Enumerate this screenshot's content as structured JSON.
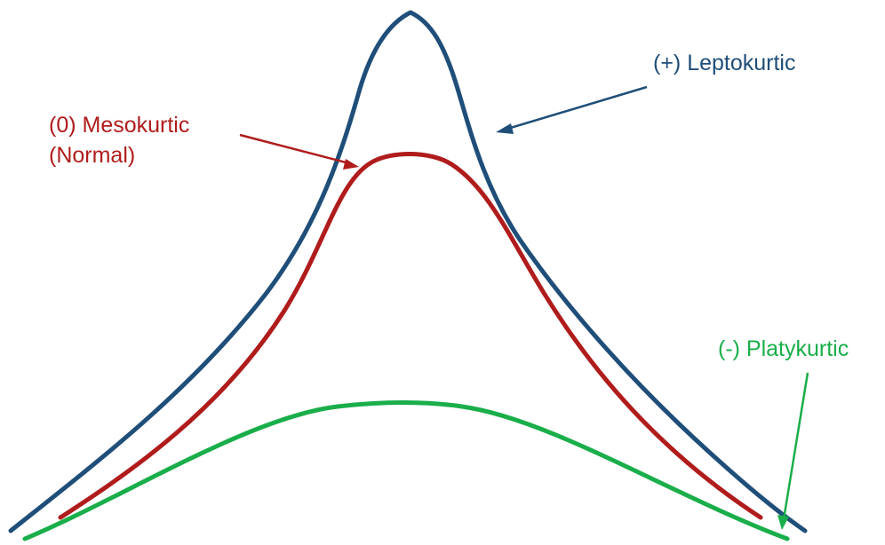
{
  "colors": {
    "leptokurtic": "#1f4e79",
    "mesokurtic": "#b01c1c",
    "platykurtic": "#1aae4a",
    "background": "#ffffff"
  },
  "labels": {
    "leptokurtic": "(+) Leptokurtic",
    "mesokurtic_line1": "(0) Mesokurtic",
    "mesokurtic_line2": "(Normal)",
    "platykurtic": "(-) Platykurtic"
  }
}
